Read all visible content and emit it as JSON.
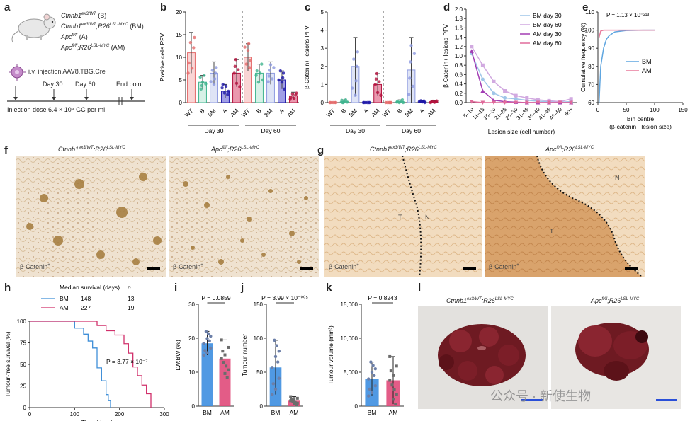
{
  "panels": {
    "a": {
      "label": "a",
      "genotypes": [
        {
          "text": "Ctnnb1ex3/WT (B)",
          "main": "Ctnnb1",
          "sup": "ex3/WT",
          "rest": " (B)"
        },
        {
          "text": "Ctnnb1ex3/WT;R26LSL-MYC (BM)",
          "main": "Ctnnb1",
          "sup": "ex3/WT",
          "mid": ";R26",
          "sup2": "LSL-MYC",
          "rest": " (BM)"
        },
        {
          "text": "Apcfl/fl (A)",
          "main": "Apc",
          "sup": "fl/fl",
          "rest": " (A)"
        },
        {
          "text": "Apcfl/fl;R26LSL-MYC (AM)",
          "main": "Apc",
          "sup": "fl/fl",
          "mid": ";R26",
          "sup2": "LSL-MYC",
          "rest": " (AM)"
        }
      ],
      "injection": "i.v. injection AAV8.TBG.Cre",
      "timepoints": [
        "Day 30",
        "Day 60",
        "End point"
      ],
      "dose": "Injection dose 6.4 × 10⁸ GC per ml"
    },
    "b": {
      "label": "b"
    },
    "c": {
      "label": "c"
    },
    "d": {
      "label": "d"
    },
    "e": {
      "label": "e"
    },
    "f": {
      "label": "f",
      "titles": [
        "Ctnnb1ex3/WT;R26LSL-MYC",
        "Apcfl/fl;R26LSL-MYC"
      ],
      "captions": [
        "β-Catenin+",
        "β-Catenin+"
      ]
    },
    "g": {
      "label": "g",
      "titles": [
        "Ctnnb1ex3/WT;R26LSL-MYC",
        "Apcfl/fl;R26LSL-MYC"
      ],
      "captions": [
        "β-Catenin+",
        "β-Catenin+"
      ],
      "regions": [
        "T",
        "N",
        "N",
        "T"
      ]
    },
    "h": {
      "label": "h"
    },
    "i": {
      "label": "i"
    },
    "j": {
      "label": "j"
    },
    "k": {
      "label": "k"
    },
    "l": {
      "label": "l",
      "titles": [
        "Ctnnb1ex3/WT;R26LSL-MYC",
        "Apcfl/fl;R26LSL-MYC"
      ]
    }
  },
  "watermark": "公众号 · 新使生物",
  "chart_data": [
    {
      "id": "b",
      "type": "bar",
      "ylabel": "Positive cells PFV",
      "ylim": [
        0,
        20
      ],
      "yticks": [
        0,
        5,
        10,
        15,
        20
      ],
      "categories": [
        "WT",
        "B",
        "BM",
        "A",
        "AM",
        "WT",
        "B",
        "BM",
        "A",
        "AM"
      ],
      "groups": [
        "Day 30",
        "Day 60"
      ],
      "values": [
        11,
        4.5,
        6.5,
        2.5,
        6.5,
        10,
        6.5,
        6.5,
        5,
        1.5
      ],
      "errors": [
        4.5,
        1.5,
        2.5,
        1.5,
        3,
        3,
        2,
        2.5,
        2,
        0.8
      ]
    },
    {
      "id": "c",
      "type": "bar",
      "ylabel": "β-Catenin+ lesions PFV",
      "ylim": [
        0,
        5
      ],
      "yticks": [
        0,
        1,
        2,
        3,
        4,
        5
      ],
      "categories": [
        "WT",
        "B",
        "BM",
        "A",
        "AM",
        "WT",
        "B",
        "BM",
        "A",
        "AM"
      ],
      "groups": [
        "Day 30",
        "Day 60"
      ],
      "values": [
        0,
        0.05,
        2.0,
        0,
        1.0,
        0,
        0.05,
        1.8,
        0.05,
        0.05
      ],
      "errors": [
        0,
        0.1,
        1.6,
        0,
        0.6,
        0,
        0.1,
        1.8,
        0.05,
        0.05
      ]
    },
    {
      "id": "d",
      "type": "line",
      "ylabel": "β-Catenin+ lesions PFV",
      "xlabel": "Lesion size (cell number)",
      "ylim": [
        0,
        2.0
      ],
      "yticks": [
        0,
        0.2,
        0.4,
        0.6,
        0.8,
        1.0,
        1.2,
        1.4,
        1.6,
        1.8,
        2.0
      ],
      "categories": [
        "5–10",
        "11–15",
        "16–20",
        "21–25",
        "26–30",
        "31–35",
        "36–40",
        "41–45",
        "46–50",
        "50+"
      ],
      "series": [
        {
          "name": "BM day 30",
          "values": [
            1.05,
            0.5,
            0.2,
            0.1,
            0.08,
            0.05,
            0.03,
            0.02,
            0.01,
            0.02
          ]
        },
        {
          "name": "BM day 60",
          "values": [
            1.2,
            0.8,
            0.45,
            0.25,
            0.15,
            0.1,
            0.06,
            0.04,
            0.02,
            0.08
          ]
        },
        {
          "name": "AM day 30",
          "values": [
            1.1,
            0.25,
            0.05,
            0.02,
            0.01,
            0,
            0,
            0,
            0,
            0
          ]
        },
        {
          "name": "AM day 60",
          "values": [
            0.02,
            0,
            0,
            0,
            0,
            0,
            0,
            0,
            0,
            0
          ]
        }
      ]
    },
    {
      "id": "e",
      "type": "line",
      "ylabel": "Cumulative frequency (%)",
      "xlabel": "Bin centre (β-catenin+ lesion size)",
      "xlim": [
        0,
        150
      ],
      "xticks": [
        0,
        50,
        100,
        150
      ],
      "ylim": [
        60,
        110
      ],
      "yticks": [
        60,
        70,
        80,
        90,
        100,
        110
      ],
      "annotation": "P = 1.13 × 10⁻²¹³",
      "series": [
        {
          "name": "BM",
          "x": [
            2,
            5,
            10,
            15,
            20,
            30,
            50,
            80,
            100
          ],
          "values": [
            60,
            80,
            90,
            95,
            97,
            99,
            99.8,
            100,
            100
          ]
        },
        {
          "name": "AM",
          "x": [
            2,
            5,
            10,
            20,
            50,
            100
          ],
          "values": [
            96,
            99.5,
            100,
            100,
            100,
            100
          ]
        }
      ]
    },
    {
      "id": "h",
      "type": "line",
      "ylabel": "Tumour-free survival (%)",
      "xlabel": "Time (days)",
      "xlim": [
        0,
        300
      ],
      "xticks": [
        0,
        100,
        200,
        300
      ],
      "ylim": [
        0,
        100
      ],
      "yticks": [
        0,
        25,
        50,
        75,
        100
      ],
      "legend_header": [
        "Median survival (days)",
        "n"
      ],
      "annotation": "P = 3.77 × 10⁻⁷",
      "series": [
        {
          "name": "BM",
          "median": 148,
          "n": 13,
          "x": [
            0,
            70,
            100,
            120,
            130,
            140,
            150,
            160,
            170,
            175,
            180
          ],
          "values": [
            100,
            100,
            92,
            85,
            77,
            69,
            46,
            31,
            15,
            8,
            0
          ]
        },
        {
          "name": "AM",
          "median": 227,
          "n": 19,
          "x": [
            0,
            130,
            150,
            170,
            190,
            210,
            220,
            230,
            240,
            250,
            260,
            270
          ],
          "values": [
            100,
            100,
            95,
            89,
            84,
            74,
            63,
            47,
            37,
            26,
            16,
            0
          ]
        }
      ]
    },
    {
      "id": "i",
      "type": "bar",
      "ylabel": "LW:BW (%)",
      "ylim": [
        0,
        30
      ],
      "yticks": [
        0,
        10,
        20,
        30
      ],
      "categories": [
        "BM",
        "AM"
      ],
      "values": [
        18.5,
        14
      ],
      "errors": [
        3.5,
        5.5
      ],
      "annotation": "P = 0.0859"
    },
    {
      "id": "j",
      "type": "bar",
      "ylabel": "Tumour number",
      "ylim": [
        0,
        150
      ],
      "yticks": [
        0,
        50,
        100,
        150
      ],
      "categories": [
        "BM",
        "AM"
      ],
      "values": [
        57,
        8
      ],
      "errors": [
        40,
        6
      ],
      "annotation": "P = 3.99 × 10⁻⁰⁰⁵"
    },
    {
      "id": "k",
      "type": "bar",
      "ylabel": "Tumour volume (mm³)",
      "ylim": [
        0,
        15000
      ],
      "yticks": [
        0,
        5000,
        10000,
        15000
      ],
      "ytick_labels": [
        "0",
        "5,000",
        "10,000",
        "15,000"
      ],
      "categories": [
        "BM",
        "AM"
      ],
      "values": [
        4000,
        3800
      ],
      "errors": [
        2500,
        3500
      ],
      "annotation": "P = 0.8243"
    }
  ]
}
